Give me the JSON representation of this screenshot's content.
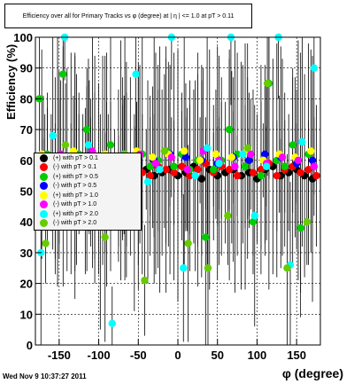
{
  "title": "Efficiency over all for Primary Tracks vs φ (degree) at | η | <= 1.0 at pT > 0.11",
  "footer_date": "Wed Nov  9 10:37:27 2011",
  "chart_data": {
    "type": "scatter",
    "xlabel": "φ (degree)",
    "ylabel": "Efficiency (%)",
    "xlim": [
      -180,
      180
    ],
    "ylim": [
      0,
      100
    ],
    "xticks": [
      -150,
      -100,
      -50,
      0,
      50,
      100,
      150
    ],
    "yticks": [
      0,
      10,
      20,
      30,
      40,
      50,
      60,
      70,
      80,
      90,
      100
    ],
    "grid": true,
    "legend_position": "left",
    "series": [
      {
        "name": "(+) with pT > 0.1",
        "color": "#000000",
        "x": [
          -170,
          -160,
          -150,
          -140,
          -130,
          -120,
          -110,
          -100,
          -90,
          -80,
          -70,
          -60,
          -50,
          -40,
          -30,
          -20,
          -10,
          0,
          10,
          20,
          30,
          40,
          50,
          60,
          70,
          80,
          90,
          100,
          110,
          120,
          130,
          140,
          150,
          160,
          170
        ],
        "y": [
          55,
          56,
          54,
          57,
          55,
          58,
          56,
          54,
          57,
          55,
          56,
          58,
          54,
          57,
          55,
          56,
          57,
          55,
          56,
          58,
          54,
          57,
          55,
          56,
          57,
          55,
          56,
          54,
          57,
          58,
          55,
          56,
          57,
          55,
          54
        ]
      },
      {
        "name": "(-) with pT > 0.1",
        "color": "#ff0000",
        "x": [
          -165,
          -155,
          -145,
          -135,
          -125,
          -115,
          -105,
          -95,
          -85,
          -75,
          -65,
          -55,
          -45,
          -35,
          -25,
          -15,
          -5,
          5,
          15,
          25,
          35,
          45,
          55,
          65,
          75,
          85,
          95,
          105,
          115,
          125,
          135,
          145,
          155,
          165,
          175
        ],
        "y": [
          57,
          55,
          58,
          56,
          59,
          54,
          57,
          56,
          58,
          55,
          57,
          59,
          56,
          55,
          58,
          57,
          56,
          58,
          55,
          57,
          59,
          56,
          58,
          57,
          55,
          58,
          56,
          57,
          59,
          55,
          57,
          58,
          56,
          57,
          55
        ]
      },
      {
        "name": "(+) with pT > 0.5",
        "color": "#00cc00",
        "x": [
          -175,
          -165,
          -155,
          -145,
          -135,
          -125,
          -115,
          -105,
          -95,
          -85,
          -75,
          -65,
          -55,
          -45,
          -35,
          -25,
          -15,
          -5,
          5,
          15,
          25,
          35,
          45,
          55,
          65,
          75,
          85,
          95,
          105,
          115,
          125,
          135,
          145,
          155,
          165
        ],
        "y": [
          80,
          62,
          50,
          88,
          59,
          62,
          70,
          55,
          60,
          65,
          50,
          57,
          43,
          62,
          58,
          60,
          63,
          58,
          62,
          57,
          60,
          35,
          57,
          60,
          70,
          62,
          58,
          40,
          55,
          85,
          60,
          58,
          65,
          38,
          62
        ]
      },
      {
        "name": "(-) with pT > 0.5",
        "color": "#0000ff",
        "x": [
          -170,
          -150,
          -130,
          -110,
          -90,
          -70,
          -50,
          -30,
          -10,
          10,
          30,
          50,
          70,
          90,
          110,
          130,
          150,
          170
        ],
        "y": [
          60,
          61,
          59,
          62,
          60,
          61,
          59,
          60,
          62,
          61,
          60,
          59,
          61,
          60,
          62,
          61,
          59,
          60
        ]
      },
      {
        "name": "(+) with pT > 1.0",
        "color": "#ffff00",
        "x": [
          -172,
          -152,
          -132,
          -112,
          -92,
          -72,
          -52,
          -32,
          -12,
          8,
          28,
          48,
          68,
          88,
          108,
          128,
          148,
          168
        ],
        "y": [
          62,
          60,
          63,
          61,
          62,
          60,
          63,
          61,
          62,
          63,
          60,
          62,
          61,
          63,
          60,
          62,
          61,
          63
        ]
      },
      {
        "name": "(-) with pT > 1.0",
        "color": "#ff00ff",
        "x": [
          -168,
          -148,
          -128,
          -108,
          -88,
          -68,
          -48,
          -28,
          -8,
          12,
          32,
          52,
          72,
          92,
          112,
          132,
          152,
          172
        ],
        "y": [
          58,
          62,
          57,
          63,
          60,
          58,
          62,
          59,
          61,
          57,
          63,
          60,
          58,
          62,
          59,
          61,
          60,
          58
        ]
      },
      {
        "name": "(+) with pT > 2.0",
        "color": "#00ffff",
        "x": [
          -173,
          -158,
          -143,
          -128,
          -113,
          -98,
          -83,
          -68,
          -53,
          -38,
          -23,
          -8,
          7,
          22,
          37,
          52,
          67,
          82,
          97,
          112,
          127,
          142,
          157,
          172
        ],
        "y": [
          30,
          68,
          100,
          59,
          65,
          40,
          7,
          62,
          88,
          53,
          57,
          100,
          25,
          55,
          64,
          59,
          100,
          62,
          42,
          58,
          100,
          26,
          66,
          90
        ]
      },
      {
        "name": "(-) with pT > 2.0",
        "color": "#66cc00",
        "x": [
          -167,
          -142,
          -117,
          -92,
          -67,
          -42,
          -17,
          13,
          38,
          63,
          88,
          113,
          138,
          163
        ],
        "y": [
          33,
          65,
          50,
          35,
          62,
          21,
          63,
          33,
          25,
          42,
          64,
          85,
          25,
          40
        ]
      }
    ]
  }
}
